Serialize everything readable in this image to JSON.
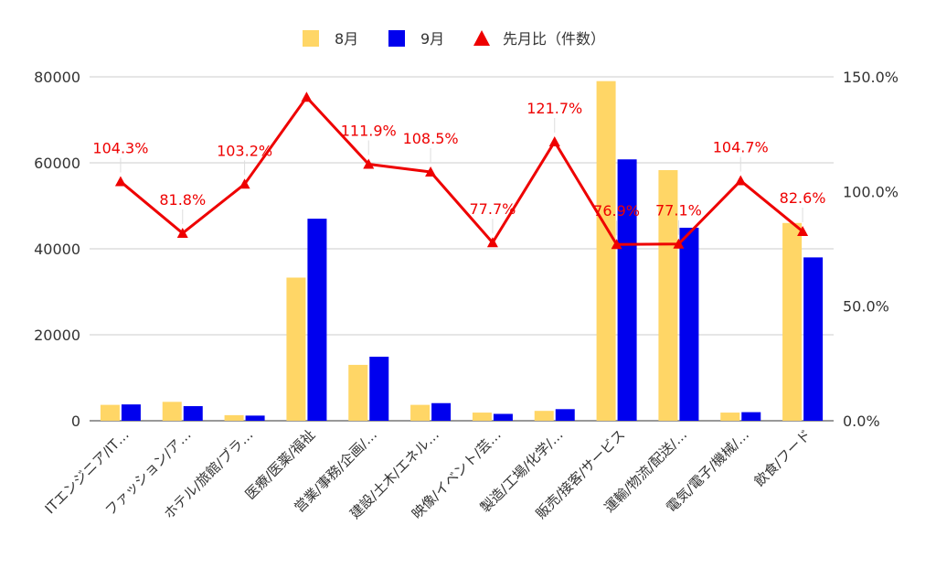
{
  "chart_data": {
    "type": "bar",
    "title": "",
    "legend_position": "top",
    "grid": true,
    "categories": [
      "ITエンジニア/IT…",
      "ファッション/ア…",
      "ホテル/旅館/ブラ…",
      "医療/医薬/福祉",
      "営業/事務/企画/…",
      "建設/土木/エネル…",
      "映像/イベント/芸…",
      "製造/工場/化学/…",
      "販売/接客/サービス",
      "運輸/物流/配送/…",
      "電気/電子/機械/…",
      "飲食/フード"
    ],
    "series": [
      {
        "name": "8月",
        "type": "bar",
        "axis": "left",
        "color": "#ffd666",
        "values": [
          3700,
          4400,
          1300,
          33300,
          13000,
          3700,
          1900,
          2300,
          79000,
          58300,
          1900,
          46000
        ]
      },
      {
        "name": "9月",
        "type": "bar",
        "axis": "left",
        "color": "#0000ee",
        "values": [
          3800,
          3400,
          1200,
          47000,
          14900,
          4100,
          1600,
          2700,
          60800,
          44900,
          2000,
          38000
        ]
      },
      {
        "name": "先月比（件数）",
        "type": "line",
        "axis": "right",
        "color": "#ee0000",
        "values": [
          104.3,
          81.8,
          103.2,
          141.1,
          111.9,
          108.5,
          77.7,
          121.7,
          76.9,
          77.1,
          104.7,
          82.6
        ]
      }
    ],
    "line_labels": [
      "104.3%",
      "81.8%",
      "103.2%",
      "",
      "111.9%",
      "108.5%",
      "77.7%",
      "121.7%",
      "76.9%",
      "77.1%",
      "104.7%",
      "82.6%"
    ],
    "y_left": {
      "min": 0,
      "max": 80000,
      "ticks": [
        "0",
        "20000",
        "40000",
        "60000",
        "80000"
      ]
    },
    "y_right": {
      "min": 0,
      "max": 150,
      "ticks": [
        "0.0%",
        "50.0%",
        "100.0%",
        "150.0%"
      ]
    }
  }
}
